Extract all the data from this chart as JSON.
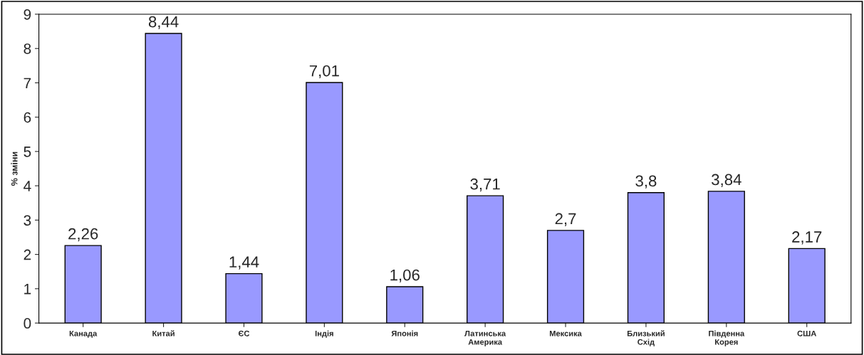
{
  "chart_data": {
    "type": "bar",
    "ylabel": "% зміни",
    "categories": [
      "Канада",
      "Китай",
      "ЄС",
      "Індія",
      "Японія",
      "Латинська\nАмерика",
      "Мексика",
      "Близький\nСхід",
      "Південна\nКорея",
      "США"
    ],
    "values": [
      2.26,
      8.44,
      1.44,
      7.01,
      1.06,
      3.71,
      2.7,
      3.8,
      3.84,
      2.17
    ],
    "value_labels": [
      "2,26",
      "8,44",
      "1,44",
      "7,01",
      "1,06",
      "3,71",
      "2,7",
      "3,8",
      "3,84",
      "2,17"
    ],
    "color": "#9999ff",
    "ylim": [
      0,
      9
    ],
    "yticks": [
      0,
      1,
      2,
      3,
      4,
      5,
      6,
      7,
      8,
      9
    ],
    "grid": false,
    "legend": false
  }
}
